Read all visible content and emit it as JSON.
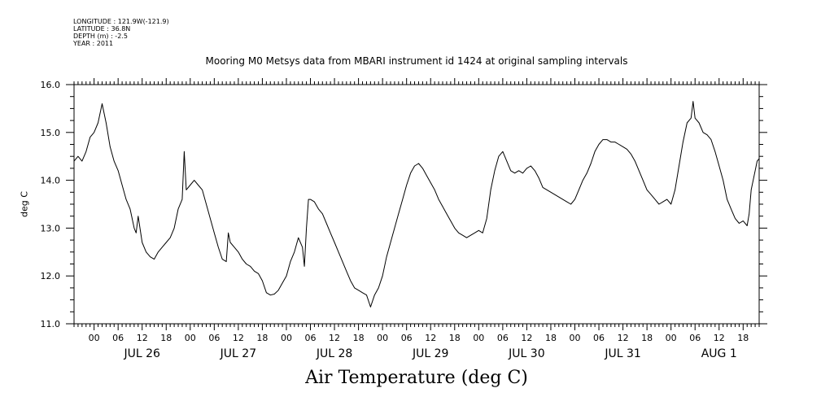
{
  "meta": {
    "longitude": "LONGITUDE : 121.9W(-121.9)",
    "latitude": "LATITUDE : 36.8N",
    "depth": "DEPTH (m) : -2.5",
    "year": "YEAR : 2011"
  },
  "chart_data": {
    "type": "line",
    "title": "Mooring M0 Metsys data from MBARI instrument id 1424 at original sampling intervals",
    "caption": "Air Temperature (deg C)",
    "ylabel": "deg C",
    "xlabel": "",
    "ylim": [
      11.0,
      16.0
    ],
    "yticks": [
      11.0,
      12.0,
      13.0,
      14.0,
      15.0,
      16.0
    ],
    "ytick_labels": [
      "11.0",
      "12.0",
      "13.0",
      "14.0",
      "15.0",
      "16.0"
    ],
    "xlim": [
      "2011-07-25T19:00",
      "2011-08-01T22:00"
    ],
    "x_hour_labels": [
      {
        "time": "2011-07-26T00:00",
        "label": "00"
      },
      {
        "time": "2011-07-26T06:00",
        "label": "06"
      },
      {
        "time": "2011-07-26T12:00",
        "label": "12"
      },
      {
        "time": "2011-07-26T18:00",
        "label": "18"
      },
      {
        "time": "2011-07-27T00:00",
        "label": "00"
      },
      {
        "time": "2011-07-27T06:00",
        "label": "06"
      },
      {
        "time": "2011-07-27T12:00",
        "label": "12"
      },
      {
        "time": "2011-07-27T18:00",
        "label": "18"
      },
      {
        "time": "2011-07-28T00:00",
        "label": "00"
      },
      {
        "time": "2011-07-28T06:00",
        "label": "06"
      },
      {
        "time": "2011-07-28T12:00",
        "label": "12"
      },
      {
        "time": "2011-07-28T18:00",
        "label": "18"
      },
      {
        "time": "2011-07-29T00:00",
        "label": "00"
      },
      {
        "time": "2011-07-29T06:00",
        "label": "06"
      },
      {
        "time": "2011-07-29T12:00",
        "label": "12"
      },
      {
        "time": "2011-07-29T18:00",
        "label": "18"
      },
      {
        "time": "2011-07-30T00:00",
        "label": "00"
      },
      {
        "time": "2011-07-30T06:00",
        "label": "06"
      },
      {
        "time": "2011-07-30T12:00",
        "label": "12"
      },
      {
        "time": "2011-07-30T18:00",
        "label": "18"
      },
      {
        "time": "2011-07-31T00:00",
        "label": "00"
      },
      {
        "time": "2011-07-31T06:00",
        "label": "06"
      },
      {
        "time": "2011-07-31T12:00",
        "label": "12"
      },
      {
        "time": "2011-07-31T18:00",
        "label": "18"
      },
      {
        "time": "2011-08-01T00:00",
        "label": "00"
      },
      {
        "time": "2011-08-01T06:00",
        "label": "06"
      },
      {
        "time": "2011-08-01T12:00",
        "label": "12"
      },
      {
        "time": "2011-08-01T18:00",
        "label": "18"
      }
    ],
    "x_day_labels": [
      {
        "time": "2011-07-26T12:00",
        "label": "JUL 26"
      },
      {
        "time": "2011-07-27T12:00",
        "label": "JUL 27"
      },
      {
        "time": "2011-07-28T12:00",
        "label": "JUL 28"
      },
      {
        "time": "2011-07-29T12:00",
        "label": "JUL 29"
      },
      {
        "time": "2011-07-30T12:00",
        "label": "JUL 30"
      },
      {
        "time": "2011-07-31T12:00",
        "label": "JUL 31"
      },
      {
        "time": "2011-08-01T12:00",
        "label": "AUG  1"
      }
    ],
    "series": [
      {
        "color": "#000000",
        "points": [
          [
            "2011-07-25T19:00",
            14.4
          ],
          [
            "2011-07-25T20:00",
            14.5
          ],
          [
            "2011-07-25T21:00",
            14.4
          ],
          [
            "2011-07-25T22:00",
            14.6
          ],
          [
            "2011-07-25T23:00",
            14.9
          ],
          [
            "2011-07-26T00:00",
            15.0
          ],
          [
            "2011-07-26T01:00",
            15.2
          ],
          [
            "2011-07-26T02:00",
            15.6
          ],
          [
            "2011-07-26T03:00",
            15.2
          ],
          [
            "2011-07-26T04:00",
            14.7
          ],
          [
            "2011-07-26T05:00",
            14.4
          ],
          [
            "2011-07-26T06:00",
            14.2
          ],
          [
            "2011-07-26T07:00",
            13.9
          ],
          [
            "2011-07-26T08:00",
            13.6
          ],
          [
            "2011-07-26T09:00",
            13.4
          ],
          [
            "2011-07-26T10:00",
            13.0
          ],
          [
            "2011-07-26T10:30",
            12.9
          ],
          [
            "2011-07-26T11:00",
            13.25
          ],
          [
            "2011-07-26T12:00",
            12.7
          ],
          [
            "2011-07-26T13:00",
            12.5
          ],
          [
            "2011-07-26T14:00",
            12.4
          ],
          [
            "2011-07-26T15:00",
            12.35
          ],
          [
            "2011-07-26T16:00",
            12.5
          ],
          [
            "2011-07-26T17:00",
            12.6
          ],
          [
            "2011-07-26T18:00",
            12.7
          ],
          [
            "2011-07-26T19:00",
            12.8
          ],
          [
            "2011-07-26T20:00",
            13.0
          ],
          [
            "2011-07-26T21:00",
            13.4
          ],
          [
            "2011-07-26T22:00",
            13.6
          ],
          [
            "2011-07-26T22:30",
            14.6
          ],
          [
            "2011-07-26T23:00",
            13.8
          ],
          [
            "2011-07-27T00:00",
            13.9
          ],
          [
            "2011-07-27T01:00",
            14.0
          ],
          [
            "2011-07-27T02:00",
            13.9
          ],
          [
            "2011-07-27T03:00",
            13.8
          ],
          [
            "2011-07-27T04:00",
            13.5
          ],
          [
            "2011-07-27T05:00",
            13.2
          ],
          [
            "2011-07-27T06:00",
            12.9
          ],
          [
            "2011-07-27T07:00",
            12.6
          ],
          [
            "2011-07-27T08:00",
            12.35
          ],
          [
            "2011-07-27T09:00",
            12.3
          ],
          [
            "2011-07-27T09:30",
            12.9
          ],
          [
            "2011-07-27T10:00",
            12.7
          ],
          [
            "2011-07-27T11:00",
            12.6
          ],
          [
            "2011-07-27T12:00",
            12.5
          ],
          [
            "2011-07-27T13:00",
            12.35
          ],
          [
            "2011-07-27T14:00",
            12.25
          ],
          [
            "2011-07-27T15:00",
            12.2
          ],
          [
            "2011-07-27T16:00",
            12.1
          ],
          [
            "2011-07-27T17:00",
            12.05
          ],
          [
            "2011-07-27T18:00",
            11.9
          ],
          [
            "2011-07-27T19:00",
            11.65
          ],
          [
            "2011-07-27T20:00",
            11.6
          ],
          [
            "2011-07-27T21:00",
            11.62
          ],
          [
            "2011-07-27T22:00",
            11.7
          ],
          [
            "2011-07-27T23:00",
            11.85
          ],
          [
            "2011-07-28T00:00",
            12.0
          ],
          [
            "2011-07-28T01:00",
            12.3
          ],
          [
            "2011-07-28T02:00",
            12.5
          ],
          [
            "2011-07-28T03:00",
            12.8
          ],
          [
            "2011-07-28T04:00",
            12.6
          ],
          [
            "2011-07-28T04:30",
            12.2
          ],
          [
            "2011-07-28T05:00",
            13.0
          ],
          [
            "2011-07-28T05:30",
            13.6
          ],
          [
            "2011-07-28T06:00",
            13.6
          ],
          [
            "2011-07-28T07:00",
            13.55
          ],
          [
            "2011-07-28T08:00",
            13.4
          ],
          [
            "2011-07-28T09:00",
            13.3
          ],
          [
            "2011-07-28T10:00",
            13.1
          ],
          [
            "2011-07-28T11:00",
            12.9
          ],
          [
            "2011-07-28T12:00",
            12.7
          ],
          [
            "2011-07-28T13:00",
            12.5
          ],
          [
            "2011-07-28T14:00",
            12.3
          ],
          [
            "2011-07-28T15:00",
            12.1
          ],
          [
            "2011-07-28T16:00",
            11.9
          ],
          [
            "2011-07-28T17:00",
            11.75
          ],
          [
            "2011-07-28T18:00",
            11.7
          ],
          [
            "2011-07-28T19:00",
            11.65
          ],
          [
            "2011-07-28T20:00",
            11.6
          ],
          [
            "2011-07-28T21:00",
            11.35
          ],
          [
            "2011-07-28T22:00",
            11.6
          ],
          [
            "2011-07-28T23:00",
            11.75
          ],
          [
            "2011-07-29T00:00",
            12.0
          ],
          [
            "2011-07-29T01:00",
            12.4
          ],
          [
            "2011-07-29T02:00",
            12.7
          ],
          [
            "2011-07-29T03:00",
            13.0
          ],
          [
            "2011-07-29T04:00",
            13.3
          ],
          [
            "2011-07-29T05:00",
            13.6
          ],
          [
            "2011-07-29T06:00",
            13.9
          ],
          [
            "2011-07-29T07:00",
            14.15
          ],
          [
            "2011-07-29T08:00",
            14.3
          ],
          [
            "2011-07-29T09:00",
            14.35
          ],
          [
            "2011-07-29T10:00",
            14.25
          ],
          [
            "2011-07-29T11:00",
            14.1
          ],
          [
            "2011-07-29T12:00",
            13.95
          ],
          [
            "2011-07-29T13:00",
            13.8
          ],
          [
            "2011-07-29T14:00",
            13.6
          ],
          [
            "2011-07-29T15:00",
            13.45
          ],
          [
            "2011-07-29T16:00",
            13.3
          ],
          [
            "2011-07-29T17:00",
            13.15
          ],
          [
            "2011-07-29T18:00",
            13.0
          ],
          [
            "2011-07-29T19:00",
            12.9
          ],
          [
            "2011-07-29T20:00",
            12.85
          ],
          [
            "2011-07-29T21:00",
            12.8
          ],
          [
            "2011-07-29T22:00",
            12.85
          ],
          [
            "2011-07-29T23:00",
            12.9
          ],
          [
            "2011-07-30T00:00",
            12.95
          ],
          [
            "2011-07-30T01:00",
            12.9
          ],
          [
            "2011-07-30T02:00",
            13.2
          ],
          [
            "2011-07-30T03:00",
            13.8
          ],
          [
            "2011-07-30T04:00",
            14.2
          ],
          [
            "2011-07-30T05:00",
            14.5
          ],
          [
            "2011-07-30T06:00",
            14.6
          ],
          [
            "2011-07-30T07:00",
            14.4
          ],
          [
            "2011-07-30T08:00",
            14.2
          ],
          [
            "2011-07-30T09:00",
            14.15
          ],
          [
            "2011-07-30T10:00",
            14.2
          ],
          [
            "2011-07-30T11:00",
            14.15
          ],
          [
            "2011-07-30T12:00",
            14.25
          ],
          [
            "2011-07-30T13:00",
            14.3
          ],
          [
            "2011-07-30T14:00",
            14.2
          ],
          [
            "2011-07-30T15:00",
            14.05
          ],
          [
            "2011-07-30T16:00",
            13.85
          ],
          [
            "2011-07-30T18:00",
            13.75
          ],
          [
            "2011-07-30T20:00",
            13.65
          ],
          [
            "2011-07-30T22:00",
            13.55
          ],
          [
            "2011-07-30T23:00",
            13.5
          ],
          [
            "2011-07-31T00:00",
            13.6
          ],
          [
            "2011-07-31T01:00",
            13.8
          ],
          [
            "2011-07-31T02:00",
            14.0
          ],
          [
            "2011-07-31T03:00",
            14.15
          ],
          [
            "2011-07-31T04:00",
            14.35
          ],
          [
            "2011-07-31T05:00",
            14.6
          ],
          [
            "2011-07-31T06:00",
            14.75
          ],
          [
            "2011-07-31T07:00",
            14.85
          ],
          [
            "2011-07-31T08:00",
            14.85
          ],
          [
            "2011-07-31T09:00",
            14.8
          ],
          [
            "2011-07-31T10:00",
            14.8
          ],
          [
            "2011-07-31T11:00",
            14.75
          ],
          [
            "2011-07-31T12:00",
            14.7
          ],
          [
            "2011-07-31T13:00",
            14.65
          ],
          [
            "2011-07-31T14:00",
            14.55
          ],
          [
            "2011-07-31T15:00",
            14.4
          ],
          [
            "2011-07-31T16:00",
            14.2
          ],
          [
            "2011-07-31T17:00",
            14.0
          ],
          [
            "2011-07-31T18:00",
            13.8
          ],
          [
            "2011-07-31T19:00",
            13.7
          ],
          [
            "2011-07-31T20:00",
            13.6
          ],
          [
            "2011-07-31T21:00",
            13.5
          ],
          [
            "2011-07-31T22:00",
            13.55
          ],
          [
            "2011-07-31T23:00",
            13.6
          ],
          [
            "2011-08-01T00:00",
            13.5
          ],
          [
            "2011-08-01T01:00",
            13.8
          ],
          [
            "2011-08-01T02:00",
            14.3
          ],
          [
            "2011-08-01T03:00",
            14.8
          ],
          [
            "2011-08-01T04:00",
            15.2
          ],
          [
            "2011-08-01T05:00",
            15.3
          ],
          [
            "2011-08-01T05:30",
            15.65
          ],
          [
            "2011-08-01T06:00",
            15.3
          ],
          [
            "2011-08-01T07:00",
            15.2
          ],
          [
            "2011-08-01T08:00",
            15.0
          ],
          [
            "2011-08-01T09:00",
            14.95
          ],
          [
            "2011-08-01T10:00",
            14.85
          ],
          [
            "2011-08-01T11:00",
            14.6
          ],
          [
            "2011-08-01T12:00",
            14.3
          ],
          [
            "2011-08-01T13:00",
            14.0
          ],
          [
            "2011-08-01T14:00",
            13.6
          ],
          [
            "2011-08-01T15:00",
            13.4
          ],
          [
            "2011-08-01T16:00",
            13.2
          ],
          [
            "2011-08-01T17:00",
            13.1
          ],
          [
            "2011-08-01T18:00",
            13.15
          ],
          [
            "2011-08-01T19:00",
            13.05
          ],
          [
            "2011-08-01T19:30",
            13.3
          ],
          [
            "2011-08-01T20:00",
            13.8
          ],
          [
            "2011-08-01T21:00",
            14.2
          ],
          [
            "2011-08-01T21:30",
            14.4
          ],
          [
            "2011-08-01T22:00",
            14.45
          ]
        ]
      }
    ]
  }
}
